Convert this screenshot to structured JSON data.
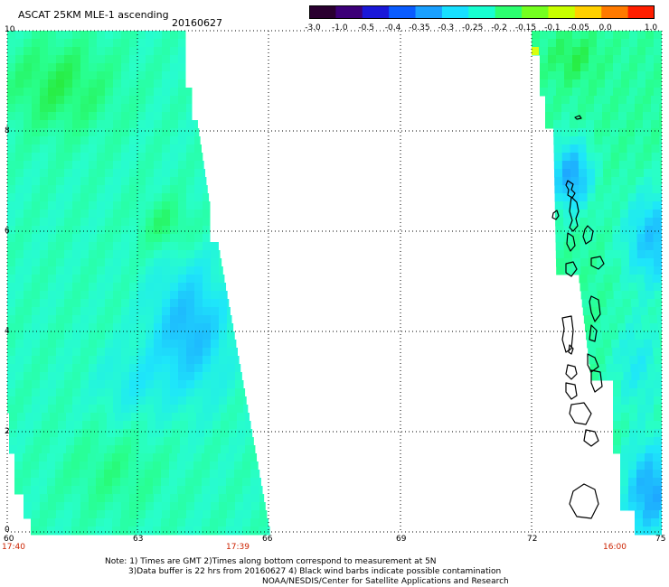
{
  "header": {
    "title": "ASCAT 25KM MLE-1 ascending",
    "date": "20160627"
  },
  "colorbar": {
    "tick_labels": [
      "-3.0",
      "-1.0",
      "-0.5",
      "-0.4",
      "-0.35",
      "-0.3",
      "-0.25",
      "-0.2",
      "-0.15",
      "-0.1",
      "-0.05",
      "0.0",
      "1.0"
    ],
    "colors": [
      "#2a0030",
      "#3c0078",
      "#1a18d8",
      "#0a5cff",
      "#1aa0ff",
      "#18e0ff",
      "#18ffd0",
      "#2cff70",
      "#74ff20",
      "#c8ff00",
      "#ffd000",
      "#ff7a00",
      "#ff1e00"
    ]
  },
  "axes": {
    "y_labels": [
      "10",
      "8",
      "6",
      "4",
      "2",
      "0"
    ],
    "x_labels": [
      "60",
      "63",
      "66",
      "69",
      "72",
      "75"
    ]
  },
  "times": {
    "left": "17:40",
    "middle": "17:39",
    "right": "16:00"
  },
  "notes": {
    "line1": "Note: 1) Times are GMT 2)Times along bottom correspond to measurement at 5N",
    "line2": "3)Data buffer is 22 hrs from 20160627 4) Black wind barbs indicate possible contamination",
    "line3": "NOAA/NESDIS/Center for Satellite Applications and Research"
  },
  "colors": {
    "grid": "#000000",
    "time_label": "#cc2200",
    "coast": "#000000"
  }
}
